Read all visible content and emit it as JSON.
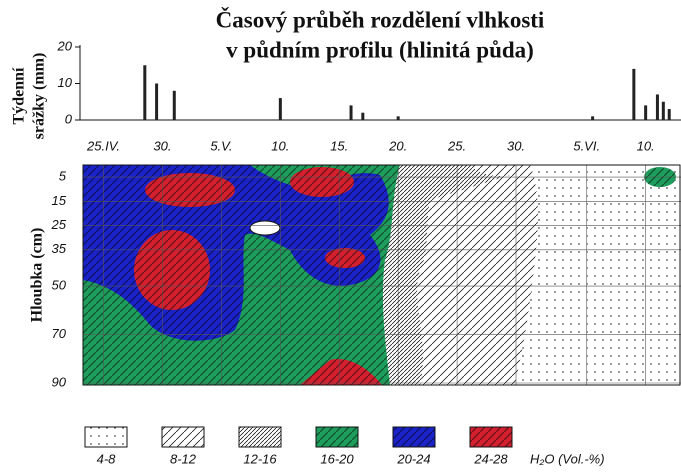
{
  "chart_data": [
    {
      "type": "bar",
      "title": [
        "Časový průběh rozdělení vlhkosti",
        "v půdním profilu (hlinitá půda)"
      ],
      "ylabel": [
        "Týdenní",
        "srážky (mm)"
      ],
      "x": [
        3.5,
        4.5,
        6,
        15,
        21,
        22,
        25,
        41.5,
        45,
        46,
        47,
        47.5,
        48
      ],
      "values": [
        15,
        10,
        8,
        6,
        4,
        2,
        1,
        1,
        14,
        4,
        7,
        5,
        3
      ],
      "color": "#222222",
      "xlim": [
        -2,
        49
      ],
      "xticks": [
        {
          "value": 0,
          "label": "25.IV."
        },
        {
          "value": 5,
          "label": "30."
        },
        {
          "value": 10,
          "label": "5.V."
        },
        {
          "value": 15,
          "label": "10."
        },
        {
          "value": 20,
          "label": "15."
        },
        {
          "value": 25,
          "label": "20."
        },
        {
          "value": 30,
          "label": "25."
        },
        {
          "value": 35,
          "label": "30."
        },
        {
          "value": 41,
          "label": "5.VI."
        },
        {
          "value": 46,
          "label": "10."
        }
      ],
      "ylim": [
        0,
        20
      ],
      "yticks": [
        0,
        10,
        20
      ]
    },
    {
      "type": "isopleth",
      "ylabel": "Hloubka (cm)",
      "ylim": [
        0,
        90
      ],
      "yticks": [
        5,
        15,
        25,
        35,
        50,
        70,
        90
      ],
      "grid": true,
      "legend": [
        {
          "name": "4-8",
          "color": "#000000",
          "pattern": "dots"
        },
        {
          "name": "8-12",
          "color": "#000000",
          "pattern": "hatch"
        },
        {
          "name": "12-16",
          "color": "#000000",
          "pattern": "dense-hatch"
        },
        {
          "name": "16-20",
          "color": "#1e9e5c",
          "pattern": "solid-hatch"
        },
        {
          "name": "20-24",
          "color": "#1a22c8",
          "pattern": "solid-hatch"
        },
        {
          "name": "24-28",
          "color": "#d4202e",
          "pattern": "solid-hatch"
        }
      ],
      "legend_title": "H₂O (Vol.-%)"
    }
  ]
}
